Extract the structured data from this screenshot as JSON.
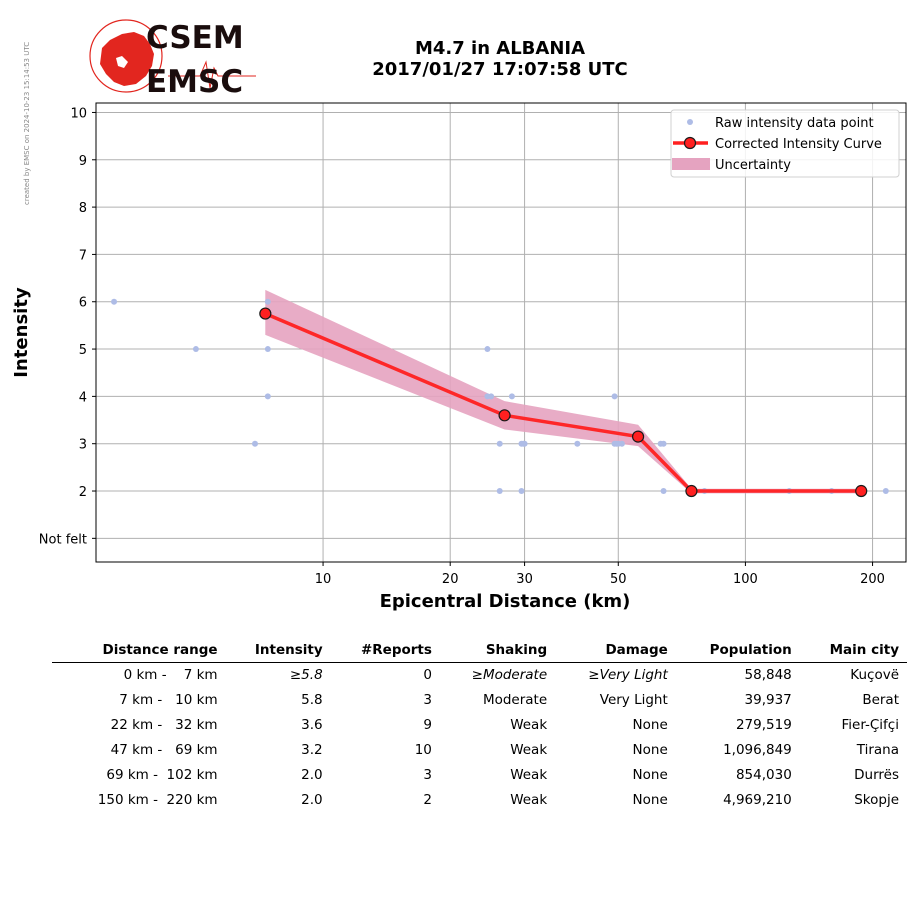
{
  "credit": "created by EMSC on 2024-10-23 15:14:53 UTC",
  "logo": {
    "line1": "CSEM",
    "line2": "EMSC",
    "color": "#e2261f"
  },
  "title": {
    "line1": "M4.7 in ALBANIA",
    "line2": "2017/01/27 17:07:58 UTC"
  },
  "chart_data": {
    "type": "scatter",
    "xscale": "log",
    "xlabel": "Epicentral Distance (km)",
    "ylabel": "Intensity",
    "xlim": [
      2.9,
      240
    ],
    "ylim": [
      0.5,
      10.2
    ],
    "xticks": [
      10,
      20,
      30,
      50,
      100,
      200
    ],
    "yticks": [
      1,
      2,
      3,
      4,
      5,
      6,
      7,
      8,
      9,
      10
    ],
    "ytick_labels": [
      "Not felt",
      "2",
      "3",
      "4",
      "5",
      "6",
      "7",
      "8",
      "9",
      "10"
    ],
    "grid": true,
    "legend_position": "top-right",
    "legend": [
      "Raw intensity data point",
      "Corrected Intensity Curve",
      "Uncertainty"
    ],
    "colors": {
      "raw": "#aebce6",
      "curve": "#ff2020",
      "marker_edge": "#1a1a1a",
      "band": "#e5a3c0"
    },
    "raw_points": [
      [
        3.2,
        6
      ],
      [
        5.0,
        5
      ],
      [
        6.9,
        3
      ],
      [
        7.4,
        6
      ],
      [
        7.4,
        5
      ],
      [
        7.4,
        4
      ],
      [
        24.5,
        5
      ],
      [
        24.5,
        4
      ],
      [
        25.0,
        4
      ],
      [
        26.2,
        3
      ],
      [
        26.2,
        2
      ],
      [
        27.0,
        3.6
      ],
      [
        28.0,
        4
      ],
      [
        29.5,
        3
      ],
      [
        29.8,
        3
      ],
      [
        29.5,
        2
      ],
      [
        30.0,
        3
      ],
      [
        40.0,
        3
      ],
      [
        49.0,
        4
      ],
      [
        49.0,
        3
      ],
      [
        49.5,
        3
      ],
      [
        50.0,
        3
      ],
      [
        51.0,
        3
      ],
      [
        56.0,
        3.1
      ],
      [
        63.0,
        3
      ],
      [
        64.0,
        3
      ],
      [
        64.0,
        2
      ],
      [
        75.0,
        2
      ],
      [
        80.0,
        2
      ],
      [
        127.0,
        2
      ],
      [
        160.0,
        2
      ],
      [
        215.0,
        2
      ]
    ],
    "curve": {
      "x": [
        7.3,
        26.9,
        55.7,
        74.5,
        188.0
      ],
      "y": [
        5.75,
        3.6,
        3.15,
        2.0,
        2.0
      ]
    },
    "uncertainty": {
      "x": [
        7.3,
        26.9,
        55.7,
        74.5,
        188.0
      ],
      "upper": [
        6.25,
        3.9,
        3.4,
        2.05,
        2.05
      ],
      "lower": [
        5.3,
        3.3,
        2.95,
        1.95,
        1.95
      ]
    }
  },
  "table": {
    "headers": [
      "Distance range",
      "Intensity",
      "#Reports",
      "Shaking",
      "Damage",
      "Population",
      "Main city"
    ],
    "rows": [
      {
        "distance": "0 km -    7 km",
        "intensity": "≥5.8",
        "reports": "0",
        "shaking": "≥Moderate",
        "damage": "≥Very Light",
        "population": "58,848",
        "city": "Kuçovë",
        "italic": true
      },
      {
        "distance": "7 km -   10 km",
        "intensity": "5.8",
        "reports": "3",
        "shaking": "Moderate",
        "damage": "Very Light",
        "population": "39,937",
        "city": "Berat",
        "italic": false
      },
      {
        "distance": "22 km -   32 km",
        "intensity": "3.6",
        "reports": "9",
        "shaking": "Weak",
        "damage": "None",
        "population": "279,519",
        "city": "Fier-Çifçi",
        "italic": false
      },
      {
        "distance": "47 km -   69 km",
        "intensity": "3.2",
        "reports": "10",
        "shaking": "Weak",
        "damage": "None",
        "population": "1,096,849",
        "city": "Tirana",
        "italic": false
      },
      {
        "distance": "69 km -  102 km",
        "intensity": "2.0",
        "reports": "3",
        "shaking": "Weak",
        "damage": "None",
        "population": "854,030",
        "city": "Durrës",
        "italic": false
      },
      {
        "distance": "150 km -  220 km",
        "intensity": "2.0",
        "reports": "2",
        "shaking": "Weak",
        "damage": "None",
        "population": "4,969,210",
        "city": "Skopje",
        "italic": false
      }
    ]
  }
}
